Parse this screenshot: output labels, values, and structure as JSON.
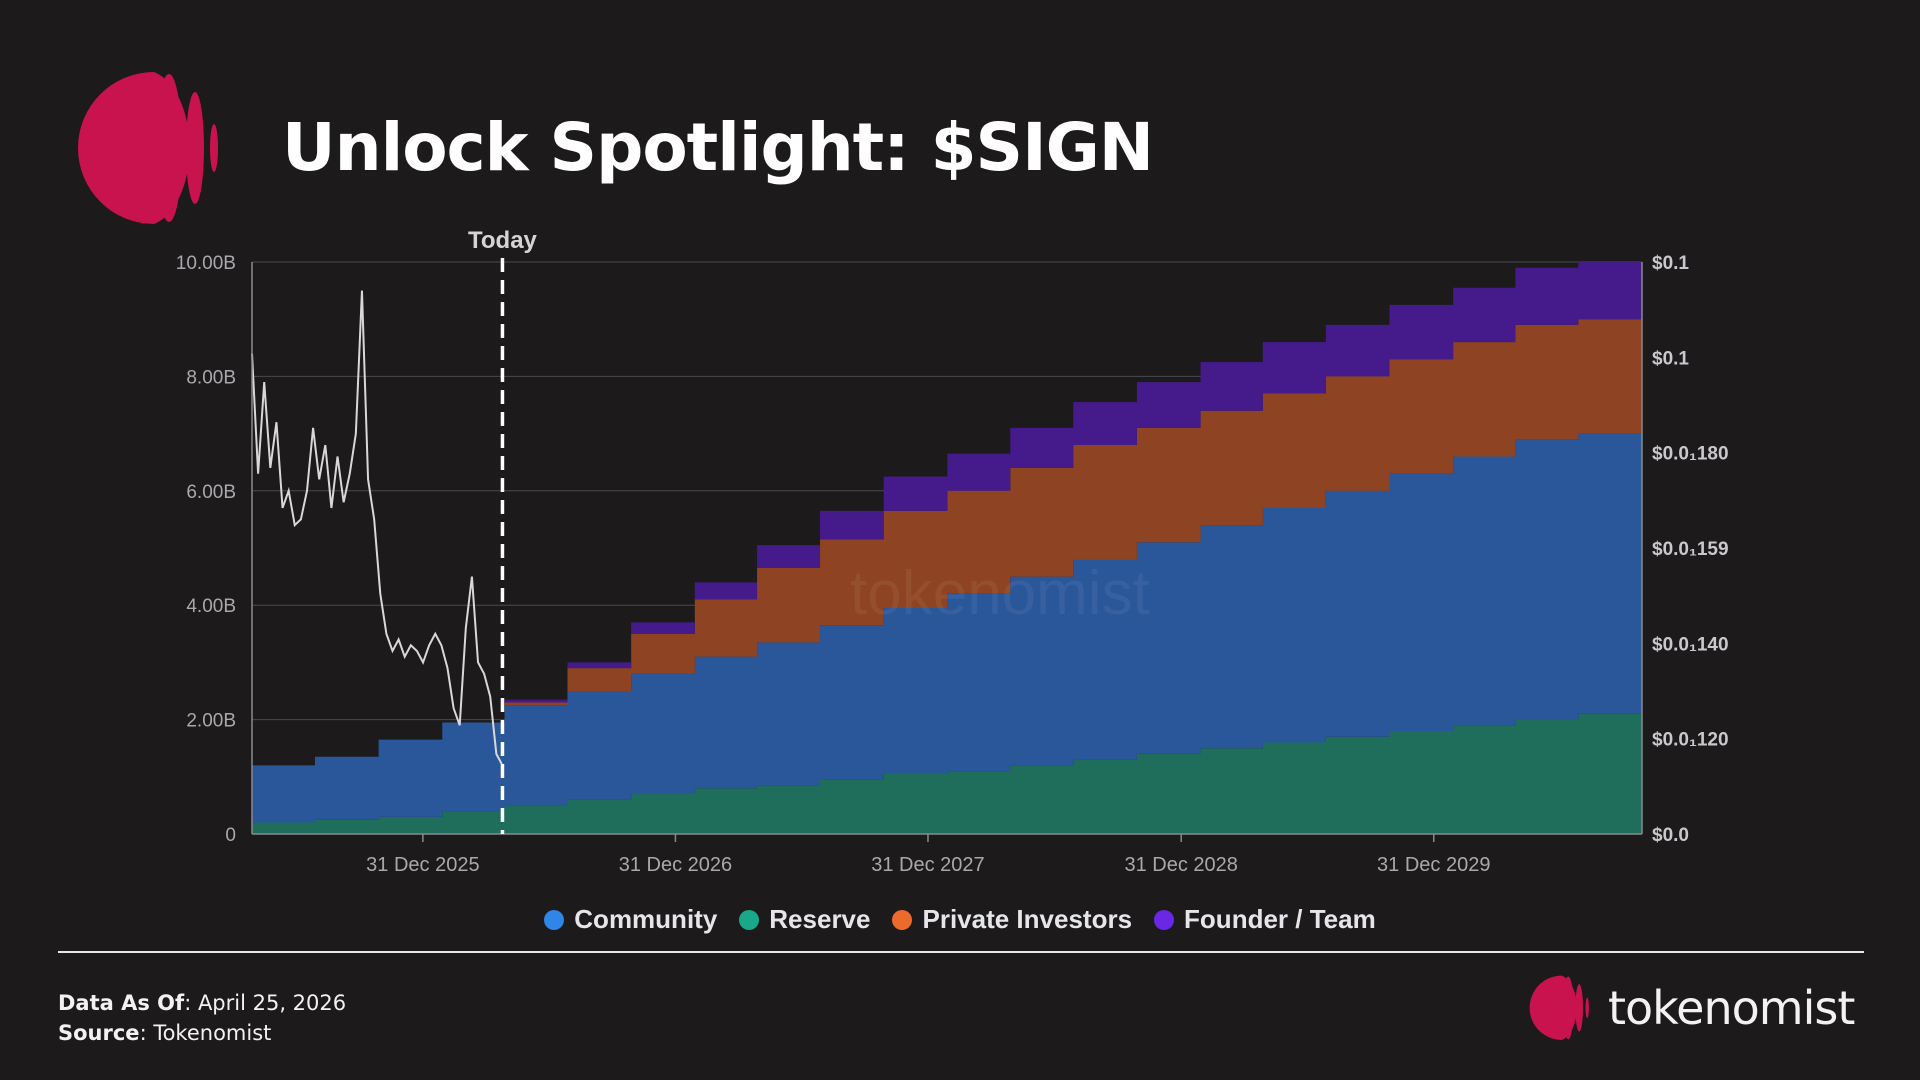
{
  "title": "Unlock Spotlight: $SIGN",
  "chart_data": {
    "type": "area",
    "subtype": "stacked-step-area with price line overlay",
    "annotation": "Today",
    "today_x": "2026-04-25",
    "x_range": [
      "2025-04-28",
      "2030-10-28"
    ],
    "x_tick_labels": [
      "31 Dec 2025",
      "31 Dec 2026",
      "31 Dec 2027",
      "31 Dec 2028",
      "31 Dec 2029"
    ],
    "x_ticks": [
      "2025-12-31",
      "2026-12-31",
      "2027-12-31",
      "2028-12-31",
      "2029-12-31"
    ],
    "y_left_range": [
      0,
      10
    ],
    "y_left_tick_labels": [
      "0",
      "2.00B",
      "4.00B",
      "6.00B",
      "8.00B",
      "10.00B"
    ],
    "y_right_tick_labels": [
      "$0.0",
      "$0.0₁120",
      "$0.0₁140",
      "$0.0₁159",
      "$0.0₁180",
      "$0.1",
      "$0.1"
    ],
    "grid": true,
    "legend_position": "bottom",
    "watermark": "tokenomist",
    "x": [
      "2025-04-28",
      "2025-07-28",
      "2025-10-28",
      "2026-01-28",
      "2026-04-28",
      "2026-07-28",
      "2026-10-28",
      "2027-01-28",
      "2027-04-28",
      "2027-07-28",
      "2027-10-28",
      "2028-01-28",
      "2028-04-28",
      "2028-07-28",
      "2028-10-28",
      "2029-01-28",
      "2029-04-28",
      "2029-07-28",
      "2029-10-28",
      "2030-01-28",
      "2030-04-28",
      "2030-07-28"
    ],
    "series": [
      {
        "name": "Reserve",
        "color": "#1f6e5c",
        "values": [
          0.2,
          0.25,
          0.3,
          0.4,
          0.5,
          0.6,
          0.7,
          0.8,
          0.85,
          0.95,
          1.05,
          1.1,
          1.2,
          1.3,
          1.4,
          1.5,
          1.6,
          1.7,
          1.8,
          1.9,
          2.0,
          2.1
        ]
      },
      {
        "name": "Community",
        "color": "#2a579a",
        "values": [
          1.0,
          1.1,
          1.35,
          1.55,
          1.75,
          1.9,
          2.1,
          2.3,
          2.5,
          2.7,
          2.9,
          3.1,
          3.3,
          3.5,
          3.7,
          3.9,
          4.1,
          4.3,
          4.5,
          4.7,
          4.9,
          4.9
        ]
      },
      {
        "name": "Private Investors",
        "color": "#8e4422",
        "values": [
          0,
          0,
          0,
          0,
          0.05,
          0.4,
          0.7,
          1.0,
          1.3,
          1.5,
          1.7,
          1.8,
          1.9,
          2.0,
          2.0,
          2.0,
          2.0,
          2.0,
          2.0,
          2.0,
          2.0,
          2.0
        ]
      },
      {
        "name": "Founder / Team",
        "color": "#451a8a",
        "values": [
          0,
          0,
          0,
          0,
          0.05,
          0.1,
          0.2,
          0.3,
          0.4,
          0.5,
          0.6,
          0.65,
          0.7,
          0.75,
          0.8,
          0.85,
          0.9,
          0.9,
          0.95,
          0.95,
          1.0,
          1.0
        ]
      }
    ],
    "legend": [
      {
        "name": "Community",
        "color": "#2f86e6"
      },
      {
        "name": "Reserve",
        "color": "#19a88a"
      },
      {
        "name": "Private Investors",
        "color": "#ec6a2c"
      },
      {
        "name": "Founder / Team",
        "color": "#6a28e6"
      }
    ],
    "price_line": {
      "color": "#d8d8d8",
      "points": [
        [
          0,
          8.4
        ],
        [
          6,
          6.3
        ],
        [
          12,
          7.9
        ],
        [
          18,
          6.4
        ],
        [
          24,
          7.2
        ],
        [
          30,
          5.7
        ],
        [
          36,
          6.0
        ],
        [
          42,
          5.4
        ],
        [
          48,
          5.5
        ],
        [
          54,
          6.0
        ],
        [
          60,
          7.1
        ],
        [
          66,
          6.2
        ],
        [
          72,
          6.8
        ],
        [
          78,
          5.7
        ],
        [
          84,
          6.6
        ],
        [
          90,
          5.8
        ],
        [
          96,
          6.3
        ],
        [
          102,
          7.0
        ],
        [
          108,
          9.5
        ],
        [
          114,
          6.2
        ],
        [
          120,
          5.5
        ],
        [
          126,
          4.2
        ],
        [
          132,
          3.5
        ],
        [
          138,
          3.2
        ],
        [
          144,
          3.4
        ],
        [
          150,
          3.1
        ],
        [
          156,
          3.3
        ],
        [
          162,
          3.2
        ],
        [
          168,
          3.0
        ],
        [
          174,
          3.3
        ],
        [
          180,
          3.5
        ],
        [
          186,
          3.3
        ],
        [
          192,
          2.9
        ],
        [
          198,
          2.2
        ],
        [
          204,
          1.9
        ],
        [
          210,
          3.6
        ],
        [
          216,
          4.5
        ],
        [
          222,
          3.0
        ],
        [
          228,
          2.8
        ],
        [
          234,
          2.4
        ],
        [
          240,
          1.4
        ],
        [
          246,
          1.2
        ]
      ]
    }
  },
  "footer": {
    "data_as_of_label": "Data As Of",
    "data_as_of_value": ": April 25,  2026",
    "source_label": "Source",
    "source_value": ": Tokenomist",
    "brand": "tokenomist"
  },
  "colors": {
    "accent": "#c8134f",
    "background": "#1c1a1b"
  }
}
